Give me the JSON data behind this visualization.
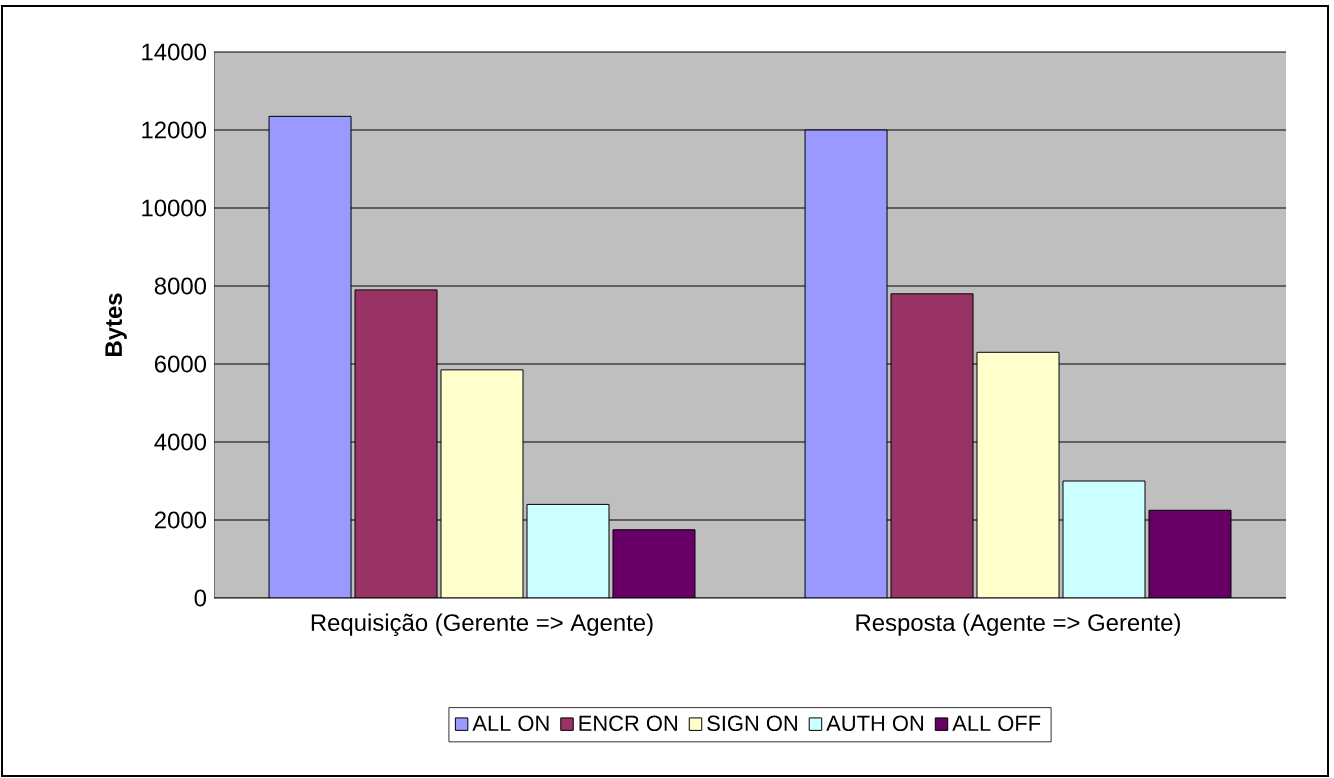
{
  "chart_data": {
    "type": "bar",
    "ylabel": "Bytes",
    "categories": [
      "Requisição (Gerente => Agente)",
      "Resposta (Agente => Gerente)"
    ],
    "series": [
      {
        "name": "ALL ON",
        "color": "#9999ff",
        "values": [
          12350,
          12000
        ]
      },
      {
        "name": "ENCR ON",
        "color": "#993366",
        "values": [
          7900,
          7800
        ]
      },
      {
        "name": "SIGN ON",
        "color": "#ffffcc",
        "values": [
          5850,
          6300
        ]
      },
      {
        "name": "AUTH ON",
        "color": "#ccffff",
        "values": [
          2400,
          3000
        ]
      },
      {
        "name": "ALL OFF",
        "color": "#660066",
        "values": [
          1750,
          2250
        ]
      }
    ],
    "ylim": [
      0,
      14000
    ],
    "yticks": [
      0,
      2000,
      4000,
      6000,
      8000,
      10000,
      12000,
      14000
    ],
    "grid": "y",
    "legend": "bottom"
  }
}
